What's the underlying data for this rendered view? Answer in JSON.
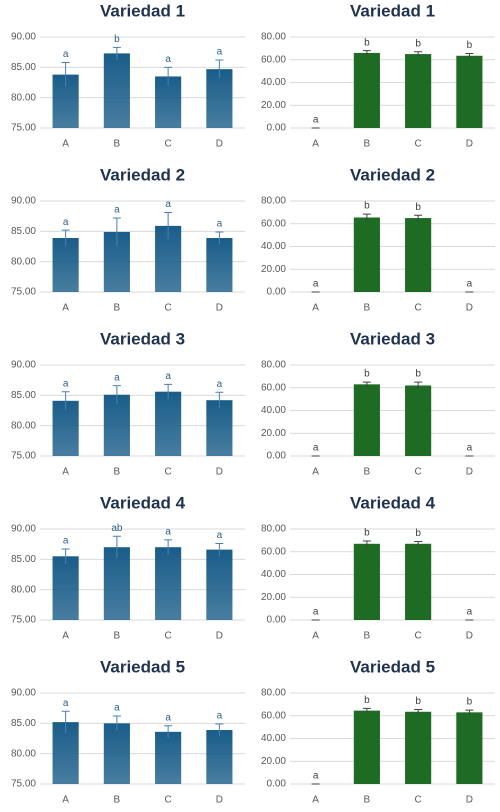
{
  "chart_data": [
    {
      "type": "bar",
      "title": "Variedad 1",
      "categories": [
        "A",
        "B",
        "C",
        "D"
      ],
      "values": [
        83.8,
        87.3,
        83.5,
        84.7
      ],
      "errors": [
        2,
        1,
        1.5,
        1.5
      ],
      "annotations": [
        "a",
        "b",
        "a",
        "a"
      ],
      "color": "#1a5d89",
      "ylim": [
        75,
        90
      ],
      "yticks": [
        {
          "value": 75,
          "label": "75.00"
        },
        {
          "value": 80,
          "label": "80.00"
        },
        {
          "value": 85,
          "label": "85.00"
        },
        {
          "value": 90,
          "label": "90.00"
        }
      ],
      "grid": true
    },
    {
      "type": "bar",
      "title": "Variedad 1",
      "categories": [
        "A",
        "B",
        "C",
        "D"
      ],
      "values": [
        0,
        66,
        65,
        63.5
      ],
      "errors": [
        0,
        2,
        2,
        2
      ],
      "annotations": [
        "a",
        "b",
        "b",
        "b"
      ],
      "color": "#1e6b23",
      "ylim": [
        0,
        80
      ],
      "yticks": [
        {
          "value": 0,
          "label": "0.00"
        },
        {
          "value": 20,
          "label": "20.00"
        },
        {
          "value": 40,
          "label": "40.00"
        },
        {
          "value": 60,
          "label": "60.00"
        },
        {
          "value": 80,
          "label": "80.00"
        }
      ],
      "grid": true
    },
    {
      "type": "bar",
      "title": "Variedad 2",
      "categories": [
        "A",
        "B",
        "C",
        "D"
      ],
      "values": [
        83.9,
        84.9,
        85.9,
        83.9
      ],
      "errors": [
        1.3,
        2.3,
        2.2,
        1
      ],
      "annotations": [
        "a",
        "a",
        "a",
        "a"
      ],
      "color": "#1a5d89",
      "ylim": [
        75,
        90
      ],
      "yticks": [
        {
          "value": 75,
          "label": "75.00"
        },
        {
          "value": 80,
          "label": "80.00"
        },
        {
          "value": 85,
          "label": "85.00"
        },
        {
          "value": 90,
          "label": "90.00"
        }
      ],
      "grid": true
    },
    {
      "type": "bar",
      "title": "Variedad 2",
      "categories": [
        "A",
        "B",
        "C",
        "D"
      ],
      "values": [
        0,
        65.5,
        65,
        0
      ],
      "errors": [
        0,
        3,
        2.5,
        0
      ],
      "annotations": [
        "a",
        "b",
        "b",
        "a"
      ],
      "color": "#1e6b23",
      "ylim": [
        0,
        80
      ],
      "yticks": [
        {
          "value": 0,
          "label": "0.00"
        },
        {
          "value": 20,
          "label": "20.00"
        },
        {
          "value": 40,
          "label": "40.00"
        },
        {
          "value": 60,
          "label": "60.00"
        },
        {
          "value": 80,
          "label": "80.00"
        }
      ],
      "grid": true
    },
    {
      "type": "bar",
      "title": "Variedad 3",
      "categories": [
        "A",
        "B",
        "C",
        "D"
      ],
      "values": [
        84.1,
        85.1,
        85.6,
        84.2
      ],
      "errors": [
        1.5,
        1.5,
        1.2,
        1.3
      ],
      "annotations": [
        "a",
        "a",
        "a",
        "a"
      ],
      "color": "#1a5d89",
      "ylim": [
        75,
        90
      ],
      "yticks": [
        {
          "value": 75,
          "label": "75.00"
        },
        {
          "value": 80,
          "label": "80.00"
        },
        {
          "value": 85,
          "label": "85.00"
        },
        {
          "value": 90,
          "label": "90.00"
        }
      ],
      "grid": true
    },
    {
      "type": "bar",
      "title": "Variedad 3",
      "categories": [
        "A",
        "B",
        "C",
        "D"
      ],
      "values": [
        0,
        63,
        62,
        0
      ],
      "errors": [
        0,
        2,
        3,
        0
      ],
      "annotations": [
        "a",
        "b",
        "b",
        "a"
      ],
      "color": "#1e6b23",
      "ylim": [
        0,
        80
      ],
      "yticks": [
        {
          "value": 0,
          "label": "0.00"
        },
        {
          "value": 20,
          "label": "20.00"
        },
        {
          "value": 40,
          "label": "40.00"
        },
        {
          "value": 60,
          "label": "60.00"
        },
        {
          "value": 80,
          "label": "80.00"
        }
      ],
      "grid": true
    },
    {
      "type": "bar",
      "title": "Variedad 4",
      "categories": [
        "A",
        "B",
        "C",
        "D"
      ],
      "values": [
        85.5,
        87,
        87,
        86.6
      ],
      "errors": [
        1.2,
        1.8,
        1.2,
        1
      ],
      "annotations": [
        "a",
        "ab",
        "a",
        "a"
      ],
      "color": "#1a5d89",
      "ylim": [
        75,
        90
      ],
      "yticks": [
        {
          "value": 75,
          "label": "75.00"
        },
        {
          "value": 80,
          "label": "80.00"
        },
        {
          "value": 85,
          "label": "85.00"
        },
        {
          "value": 90,
          "label": "90.00"
        }
      ],
      "grid": true
    },
    {
      "type": "bar",
      "title": "Variedad 4",
      "categories": [
        "A",
        "B",
        "C",
        "D"
      ],
      "values": [
        0,
        67,
        67,
        0
      ],
      "errors": [
        0,
        2.5,
        2,
        0
      ],
      "annotations": [
        "a",
        "b",
        "b",
        "a"
      ],
      "color": "#1e6b23",
      "ylim": [
        0,
        80
      ],
      "yticks": [
        {
          "value": 0,
          "label": "0.00"
        },
        {
          "value": 20,
          "label": "20.00"
        },
        {
          "value": 40,
          "label": "40.00"
        },
        {
          "value": 60,
          "label": "60.00"
        },
        {
          "value": 80,
          "label": "80.00"
        }
      ],
      "grid": true
    },
    {
      "type": "bar",
      "title": "Variedad 5",
      "categories": [
        "A",
        "B",
        "C",
        "D"
      ],
      "values": [
        85.2,
        85,
        83.6,
        83.9
      ],
      "errors": [
        1.8,
        1.2,
        1,
        1
      ],
      "annotations": [
        "a",
        "a",
        "a",
        "a"
      ],
      "color": "#1a5d89",
      "ylim": [
        75,
        90
      ],
      "yticks": [
        {
          "value": 75,
          "label": "75.00"
        },
        {
          "value": 80,
          "label": "80.00"
        },
        {
          "value": 85,
          "label": "85.00"
        },
        {
          "value": 90,
          "label": "90.00"
        }
      ],
      "grid": true
    },
    {
      "type": "bar",
      "title": "Variedad 5",
      "categories": [
        "A",
        "B",
        "C",
        "D"
      ],
      "values": [
        0,
        64.5,
        63.5,
        63
      ],
      "errors": [
        0,
        2,
        2,
        2
      ],
      "annotations": [
        "a",
        "b",
        "b",
        "b"
      ],
      "color": "#1e6b23",
      "ylim": [
        0,
        80
      ],
      "yticks": [
        {
          "value": 0,
          "label": "0.00"
        },
        {
          "value": 20,
          "label": "20.00"
        },
        {
          "value": 40,
          "label": "40.00"
        },
        {
          "value": 60,
          "label": "60.00"
        },
        {
          "value": 80,
          "label": "80.00"
        }
      ],
      "grid": true
    }
  ]
}
